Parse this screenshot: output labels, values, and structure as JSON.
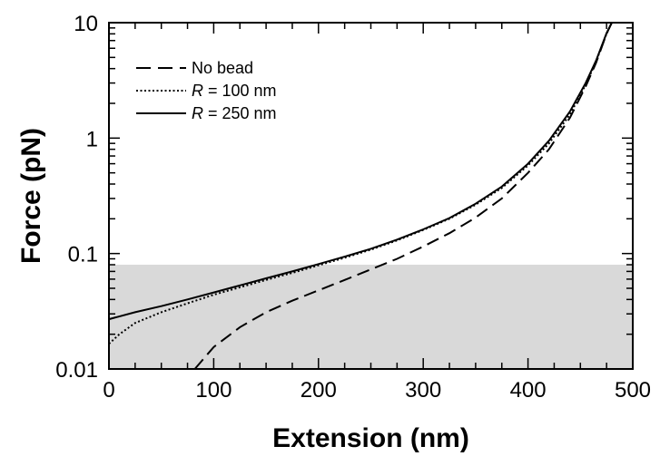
{
  "chart_data": {
    "type": "line",
    "xlabel": "Extension (nm)",
    "ylabel": "Force (pN)",
    "xlim": [
      0,
      500
    ],
    "ylim": [
      0.01,
      10
    ],
    "y_scale": "log",
    "x_ticks": [
      0,
      100,
      200,
      300,
      400,
      500
    ],
    "x_tick_labels": [
      "0",
      "100",
      "200",
      "300",
      "400",
      "500"
    ],
    "y_ticks": [
      0.01,
      0.1,
      1,
      10
    ],
    "y_tick_labels": [
      "0.01",
      "0.1",
      "1",
      "10"
    ],
    "shaded_region": {
      "y_from": 0.01,
      "y_to": 0.08,
      "color": "#d9d9d9"
    },
    "legend": {
      "position": "top-left"
    },
    "series": [
      {
        "name": "No bead",
        "style": "dashed",
        "x": [
          82,
          100,
          125,
          150,
          175,
          200,
          225,
          250,
          275,
          300,
          325,
          350,
          375,
          400,
          420,
          440,
          455,
          465,
          475,
          480
        ],
        "y": [
          0.01,
          0.0155,
          0.023,
          0.031,
          0.039,
          0.048,
          0.059,
          0.073,
          0.09,
          0.115,
          0.15,
          0.205,
          0.3,
          0.5,
          0.8,
          1.5,
          2.8,
          4.5,
          8.0,
          10.0
        ]
      },
      {
        "name": "R = 100 nm",
        "style": "dotted",
        "x": [
          0,
          10,
          25,
          50,
          75,
          100,
          125,
          150,
          175,
          200,
          225,
          250,
          275,
          300,
          325,
          350,
          375,
          400,
          420,
          440,
          455,
          465,
          475,
          480
        ],
        "y": [
          0.0165,
          0.02,
          0.025,
          0.031,
          0.037,
          0.044,
          0.051,
          0.059,
          0.068,
          0.079,
          0.092,
          0.108,
          0.13,
          0.16,
          0.2,
          0.265,
          0.37,
          0.58,
          0.9,
          1.6,
          2.9,
          4.6,
          8.0,
          10.0
        ]
      },
      {
        "name": "R = 250 nm",
        "style": "solid",
        "x": [
          0,
          25,
          50,
          75,
          100,
          125,
          150,
          175,
          200,
          225,
          250,
          275,
          300,
          325,
          350,
          375,
          400,
          420,
          440,
          455,
          465,
          475,
          480
        ],
        "y": [
          0.027,
          0.031,
          0.035,
          0.04,
          0.046,
          0.053,
          0.061,
          0.07,
          0.081,
          0.094,
          0.11,
          0.132,
          0.162,
          0.203,
          0.27,
          0.38,
          0.6,
          0.95,
          1.7,
          3.0,
          4.7,
          8.1,
          10.0
        ]
      }
    ]
  }
}
